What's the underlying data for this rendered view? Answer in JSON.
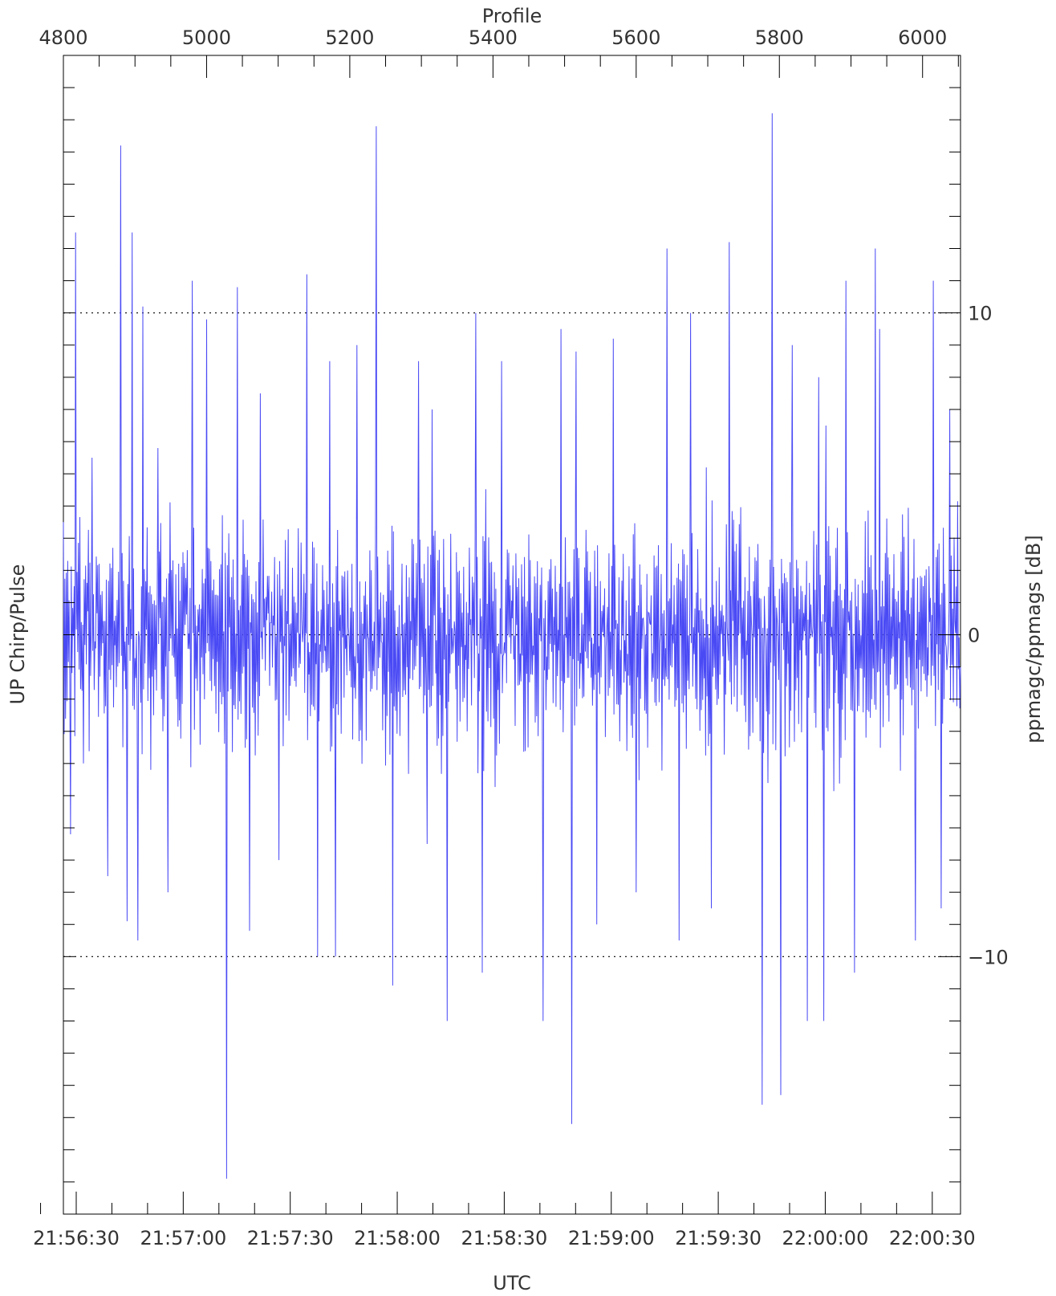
{
  "chart_data": {
    "type": "line",
    "title": "",
    "top_axis": {
      "label": "Profile",
      "range": [
        4800,
        6053
      ],
      "ticks": [
        4800,
        5000,
        5200,
        5400,
        5600,
        5800,
        6000
      ],
      "tick_labels": [
        "4800",
        "5000",
        "5200",
        "5400",
        "5600",
        "5800",
        "6000"
      ]
    },
    "bottom_axis": {
      "label": "UTC",
      "tick_labels": [
        "21:56:30",
        "21:57:00",
        "21:57:30",
        "21:58:00",
        "21:58:30",
        "21:59:00",
        "21:59:30",
        "22:00:00",
        "22:00:30"
      ]
    },
    "left_axis": {
      "label": "UP Chirp/Pulse"
    },
    "right_axis": {
      "label": "ppmagc/ppmags [dB]",
      "range": [
        -18,
        18
      ],
      "ticks": [
        10,
        0,
        -10
      ],
      "tick_labels": [
        "10",
        "0",
        "−10"
      ]
    },
    "reference_lines": [
      10,
      -10
    ],
    "grid": false,
    "series": [
      {
        "color": "#4a4af5",
        "x": [
          4800,
          4810,
          4817,
          4828,
          4840,
          4862,
          4880,
          4889,
          4896,
          4904,
          4911,
          4922,
          4932,
          4946,
          4980,
          5000,
          5028,
          5043,
          5060,
          5075,
          5101,
          5140,
          5155,
          5172,
          5180,
          5210,
          5237,
          5260,
          5296,
          5308,
          5315,
          5336,
          5376,
          5385,
          5412,
          5470,
          5495,
          5510,
          5516,
          5545,
          5568,
          5600,
          5643,
          5660,
          5676,
          5705,
          5730,
          5776,
          5790,
          5802,
          5818,
          5839,
          5855,
          5862,
          5865,
          5868,
          5893,
          5905,
          5934,
          5940,
          5990,
          6015,
          6026,
          6038,
          6047,
          6053
        ],
        "values": [
          3.5,
          -6.2,
          12.5,
          -4.0,
          5.5,
          -7.5,
          15.2,
          -8.9,
          12.5,
          -9.5,
          10.2,
          -4.2,
          5.8,
          -8.0,
          11.0,
          9.8,
          -16.9,
          10.8,
          -9.2,
          7.5,
          -7.0,
          11.2,
          -10.0,
          8.5,
          -10.0,
          9.0,
          15.8,
          -10.9,
          8.5,
          -6.5,
          7.0,
          -12.0,
          10.0,
          -10.5,
          8.5,
          -12.0,
          9.5,
          -15.2,
          8.8,
          -9.0,
          9.2,
          -8.0,
          12.0,
          -9.5,
          10.0,
          -8.5,
          12.2,
          -14.6,
          16.2,
          -14.3,
          9.0,
          -12.0,
          8.0,
          -12.0,
          6.5,
          -3.0,
          11.0,
          -10.5,
          12.0,
          9.5,
          -9.5,
          11.0,
          -8.5,
          7.0,
          1.5,
          -1.0
        ]
      }
    ]
  }
}
